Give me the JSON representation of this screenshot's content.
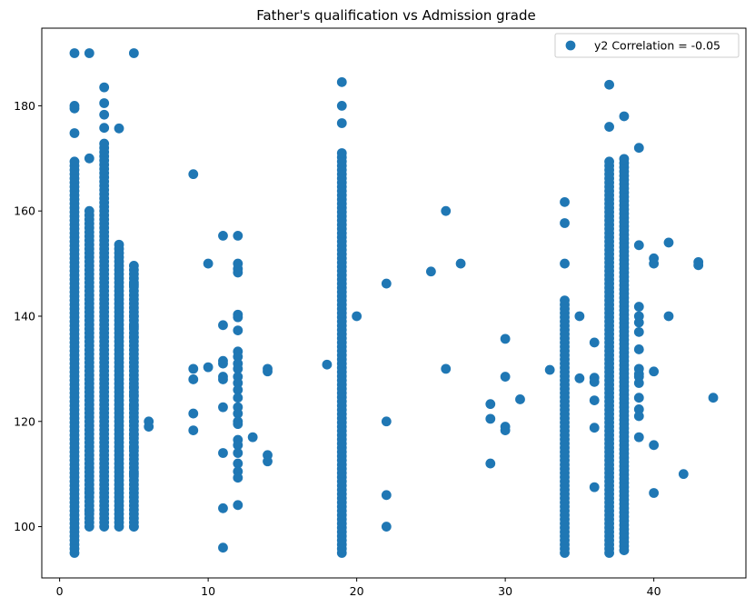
{
  "chart_data": {
    "type": "scatter",
    "title": "Father's qualification vs Admission grade",
    "xlabel": "",
    "ylabel": "",
    "xlim": [
      -1.2,
      46.2
    ],
    "ylim": [
      90.25,
      194.75
    ],
    "xticks": [
      0,
      10,
      20,
      30,
      40
    ],
    "yticks": [
      100,
      120,
      140,
      160,
      180
    ],
    "grid": false,
    "legend": {
      "position": "top-right",
      "label": "y2 Correlation = -0.05"
    },
    "series": [
      {
        "name": "y2 Correlation = -0.05",
        "color": "#1f77b4",
        "columns": [
          {
            "x": 1,
            "ymin": 95,
            "ymax": 170,
            "extra": [
              174.8,
              179.5,
              180,
              190
            ]
          },
          {
            "x": 2,
            "ymin": 100,
            "ymax": 160,
            "extra": [
              170,
              190,
              103,
              106.5
            ]
          },
          {
            "x": 3,
            "ymin": 100,
            "ymax": 173.5,
            "extra": [
              175.8,
              178.3,
              180.5,
              183.5
            ]
          },
          {
            "x": 4,
            "ymin": 100,
            "ymax": 154,
            "extra": [
              175.7
            ]
          },
          {
            "x": 5,
            "ymin": 100,
            "ymax": 150,
            "extra": [
              190
            ]
          },
          {
            "x": 19,
            "ymin": 95,
            "ymax": 171.3,
            "extra": [
              176.7,
              180,
              184.5
            ]
          },
          {
            "x": 34,
            "ymin": 95,
            "ymax": 143.5,
            "extra": [
              150,
              157.7,
              161.7
            ]
          },
          {
            "x": 37,
            "ymin": 95,
            "ymax": 170,
            "extra": [
              176,
              184
            ]
          },
          {
            "x": 38,
            "ymin": 95.5,
            "ymax": 170,
            "extra": [
              178
            ]
          }
        ],
        "points": [
          {
            "x": 5,
            "y": 146
          },
          {
            "x": 5,
            "y": 140
          },
          {
            "x": 5,
            "y": 138
          },
          {
            "x": 5,
            "y": 136
          },
          {
            "x": 5,
            "y": 126.5
          },
          {
            "x": 5,
            "y": 125
          },
          {
            "x": 5,
            "y": 123
          },
          {
            "x": 5,
            "y": 120
          },
          {
            "x": 5,
            "y": 117.5
          },
          {
            "x": 5,
            "y": 115
          },
          {
            "x": 5,
            "y": 110
          },
          {
            "x": 5,
            "y": 100
          },
          {
            "x": 6,
            "y": 120
          },
          {
            "x": 6,
            "y": 119
          },
          {
            "x": 9,
            "y": 167
          },
          {
            "x": 9,
            "y": 130
          },
          {
            "x": 9,
            "y": 128
          },
          {
            "x": 9,
            "y": 121.5
          },
          {
            "x": 9,
            "y": 118.3
          },
          {
            "x": 10,
            "y": 150
          },
          {
            "x": 10,
            "y": 130.3
          },
          {
            "x": 11,
            "y": 155.3
          },
          {
            "x": 11,
            "y": 138.3
          },
          {
            "x": 11,
            "y": 131.5
          },
          {
            "x": 11,
            "y": 131
          },
          {
            "x": 11,
            "y": 128.5
          },
          {
            "x": 11,
            "y": 128
          },
          {
            "x": 11,
            "y": 122.7
          },
          {
            "x": 11,
            "y": 114
          },
          {
            "x": 11,
            "y": 103.5
          },
          {
            "x": 11,
            "y": 96
          },
          {
            "x": 12,
            "y": 155.3
          },
          {
            "x": 12,
            "y": 150
          },
          {
            "x": 12,
            "y": 149
          },
          {
            "x": 12,
            "y": 148.3
          },
          {
            "x": 12,
            "y": 140.3
          },
          {
            "x": 12,
            "y": 139.8
          },
          {
            "x": 12,
            "y": 137.3
          },
          {
            "x": 12,
            "y": 133.3
          },
          {
            "x": 12,
            "y": 132.3
          },
          {
            "x": 12,
            "y": 131
          },
          {
            "x": 12,
            "y": 130
          },
          {
            "x": 12,
            "y": 128.5
          },
          {
            "x": 12,
            "y": 127.3
          },
          {
            "x": 12,
            "y": 126
          },
          {
            "x": 12,
            "y": 124.5
          },
          {
            "x": 12,
            "y": 122.7
          },
          {
            "x": 12,
            "y": 121.5
          },
          {
            "x": 12,
            "y": 120
          },
          {
            "x": 12,
            "y": 119.5
          },
          {
            "x": 12,
            "y": 116.5
          },
          {
            "x": 12,
            "y": 115.5
          },
          {
            "x": 12,
            "y": 114
          },
          {
            "x": 12,
            "y": 112
          },
          {
            "x": 12,
            "y": 110.5
          },
          {
            "x": 12,
            "y": 109.3
          },
          {
            "x": 12,
            "y": 104.1
          },
          {
            "x": 13,
            "y": 117
          },
          {
            "x": 14,
            "y": 130
          },
          {
            "x": 14,
            "y": 129.5
          },
          {
            "x": 14,
            "y": 113.6
          },
          {
            "x": 14,
            "y": 112.4
          },
          {
            "x": 18,
            "y": 130.8
          },
          {
            "x": 20,
            "y": 140
          },
          {
            "x": 22,
            "y": 146.2
          },
          {
            "x": 22,
            "y": 120
          },
          {
            "x": 22,
            "y": 106
          },
          {
            "x": 22,
            "y": 100
          },
          {
            "x": 25,
            "y": 148.5
          },
          {
            "x": 26,
            "y": 160
          },
          {
            "x": 26,
            "y": 130
          },
          {
            "x": 27,
            "y": 150
          },
          {
            "x": 29,
            "y": 123.3
          },
          {
            "x": 29,
            "y": 120.5
          },
          {
            "x": 29,
            "y": 112
          },
          {
            "x": 30,
            "y": 135.7
          },
          {
            "x": 30,
            "y": 128.5
          },
          {
            "x": 30,
            "y": 119
          },
          {
            "x": 30,
            "y": 118.3
          },
          {
            "x": 31,
            "y": 124.2
          },
          {
            "x": 33,
            "y": 129.8
          },
          {
            "x": 35,
            "y": 140
          },
          {
            "x": 35,
            "y": 128.2
          },
          {
            "x": 36,
            "y": 135
          },
          {
            "x": 36,
            "y": 128.3
          },
          {
            "x": 36,
            "y": 127.5
          },
          {
            "x": 36,
            "y": 124
          },
          {
            "x": 36,
            "y": 118.8
          },
          {
            "x": 36,
            "y": 107.5
          },
          {
            "x": 39,
            "y": 172
          },
          {
            "x": 39,
            "y": 153.5
          },
          {
            "x": 39,
            "y": 141.8
          },
          {
            "x": 39,
            "y": 140
          },
          {
            "x": 39,
            "y": 138.8
          },
          {
            "x": 39,
            "y": 137
          },
          {
            "x": 39,
            "y": 133.7
          },
          {
            "x": 39,
            "y": 130
          },
          {
            "x": 39,
            "y": 129
          },
          {
            "x": 39,
            "y": 127.3
          },
          {
            "x": 39,
            "y": 124.5
          },
          {
            "x": 39,
            "y": 122.3
          },
          {
            "x": 39,
            "y": 121
          },
          {
            "x": 39,
            "y": 117
          },
          {
            "x": 39,
            "y": 128.5
          },
          {
            "x": 40,
            "y": 151
          },
          {
            "x": 40,
            "y": 150
          },
          {
            "x": 40,
            "y": 129.5
          },
          {
            "x": 40,
            "y": 115.5
          },
          {
            "x": 40,
            "y": 106.4
          },
          {
            "x": 41,
            "y": 154
          },
          {
            "x": 41,
            "y": 140
          },
          {
            "x": 42,
            "y": 110
          },
          {
            "x": 43,
            "y": 150.3
          },
          {
            "x": 43,
            "y": 149.7
          },
          {
            "x": 44,
            "y": 124.5
          }
        ]
      }
    ]
  }
}
